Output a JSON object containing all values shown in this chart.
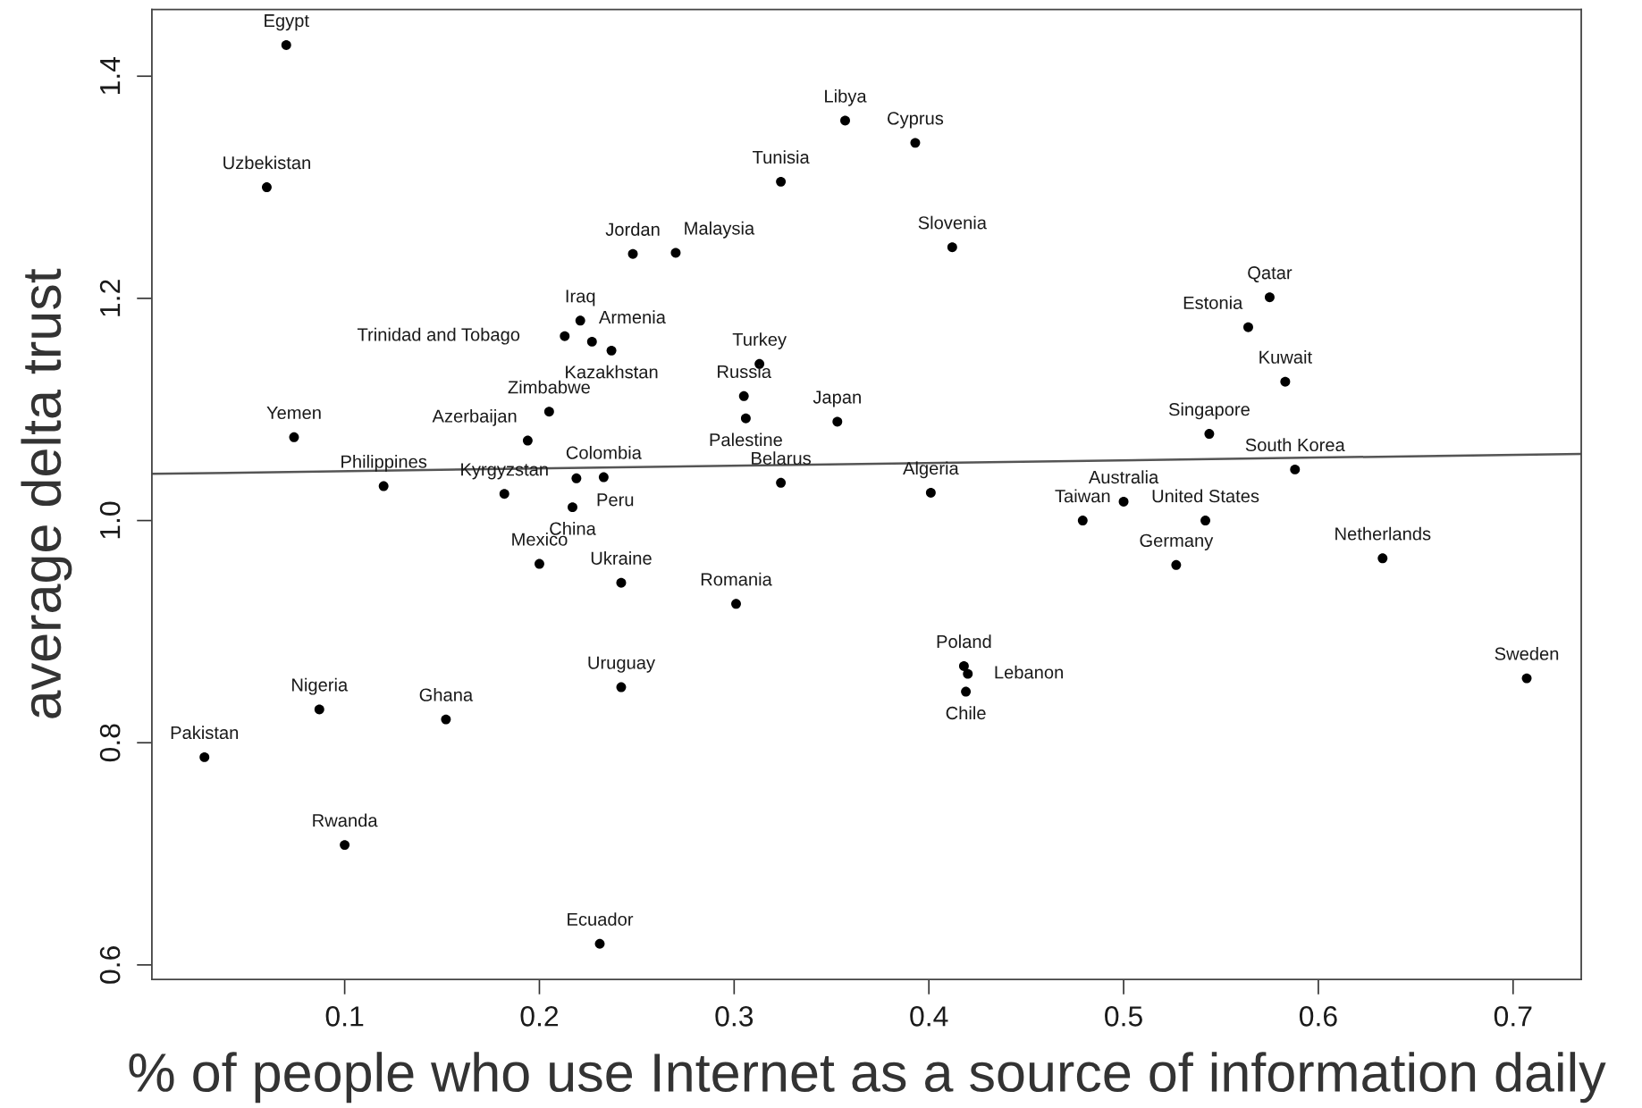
{
  "chart_data": {
    "type": "scatter",
    "xlabel": "% of people who use Internet as a source of information daily",
    "ylabel": "average delta trust",
    "xlim": [
      0.001,
      0.735
    ],
    "ylim": [
      0.587,
      1.46
    ],
    "xticks": [
      0.1,
      0.2,
      0.3,
      0.4,
      0.5,
      0.6,
      0.7
    ],
    "yticks": [
      0.6,
      0.8,
      {
        "value": 1,
        "label": "1.0"
      },
      1.2,
      1.4
    ],
    "series": [
      {
        "marker": "circle",
        "color": "#000000",
        "x": [
          0.07,
          0.06,
          0.357,
          0.393,
          0.324,
          0.248,
          0.27,
          0.412,
          0.575,
          0.221,
          0.564,
          0.213,
          0.227,
          0.237,
          0.313,
          0.583,
          0.305,
          0.205,
          0.306,
          0.353,
          0.544,
          0.074,
          0.194,
          0.588,
          0.233,
          0.219,
          0.324,
          0.12,
          0.401,
          0.182,
          0.5,
          0.217,
          0.479,
          0.542,
          0.633,
          0.2,
          0.527,
          0.242,
          0.301,
          0.418,
          0.42,
          0.707,
          0.242,
          0.419,
          0.087,
          0.152,
          0.028,
          0.1,
          0.231
        ],
        "values": [
          1.428,
          1.3,
          1.36,
          1.34,
          1.305,
          1.24,
          1.241,
          1.246,
          1.201,
          1.18,
          1.174,
          1.166,
          1.161,
          1.153,
          1.141,
          1.125,
          1.112,
          1.098,
          1.092,
          1.089,
          1.078,
          1.075,
          1.072,
          1.046,
          1.039,
          1.038,
          1.034,
          1.031,
          1.025,
          1.024,
          1.017,
          1.012,
          1.0,
          1.0,
          0.966,
          0.961,
          0.96,
          0.944,
          0.925,
          0.869,
          0.862,
          0.858,
          0.85,
          0.846,
          0.83,
          0.821,
          0.787,
          0.708,
          0.619
        ]
      },
      {
        "type": "line",
        "line_style": "solid",
        "color": "#555555",
        "x": [
          0.001,
          0.735
        ],
        "values": [
          1.042,
          1.06
        ]
      }
    ],
    "annotations": [
      {
        "text": "Egypt",
        "x": 0.07,
        "y": 1.428
      },
      {
        "text": "Uzbekistan",
        "x": 0.06,
        "y": 1.3
      },
      {
        "text": "Libya",
        "x": 0.357,
        "y": 1.36
      },
      {
        "text": "Cyprus",
        "x": 0.393,
        "y": 1.34
      },
      {
        "text": "Tunisia",
        "x": 0.324,
        "y": 1.305
      },
      {
        "text": "Jordan",
        "x": 0.248,
        "y": 1.24
      },
      {
        "text": "Malaysia",
        "x": 0.27,
        "y": 1.241
      },
      {
        "text": "Slovenia",
        "x": 0.412,
        "y": 1.246
      },
      {
        "text": "Qatar",
        "x": 0.575,
        "y": 1.201
      },
      {
        "text": "Iraq",
        "x": 0.221,
        "y": 1.18
      },
      {
        "text": "Estonia",
        "x": 0.564,
        "y": 1.174
      },
      {
        "text": "Trinidad and Tobago",
        "x": 0.213,
        "y": 1.166
      },
      {
        "text": "Armenia",
        "x": 0.227,
        "y": 1.161
      },
      {
        "text": "Kazakhstan",
        "x": 0.237,
        "y": 1.153
      },
      {
        "text": "Turkey",
        "x": 0.313,
        "y": 1.141
      },
      {
        "text": "Kuwait",
        "x": 0.583,
        "y": 1.125
      },
      {
        "text": "Russia",
        "x": 0.305,
        "y": 1.112
      },
      {
        "text": "Zimbabwe",
        "x": 0.205,
        "y": 1.098
      },
      {
        "text": "Palestine",
        "x": 0.306,
        "y": 1.092
      },
      {
        "text": "Japan",
        "x": 0.353,
        "y": 1.089
      },
      {
        "text": "Singapore",
        "x": 0.544,
        "y": 1.078
      },
      {
        "text": "Yemen",
        "x": 0.074,
        "y": 1.075
      },
      {
        "text": "Azerbaijan",
        "x": 0.194,
        "y": 1.072
      },
      {
        "text": "South Korea",
        "x": 0.588,
        "y": 1.046
      },
      {
        "text": "Colombia",
        "x": 0.233,
        "y": 1.039
      },
      {
        "text": "Peru",
        "x": 0.219,
        "y": 1.038
      },
      {
        "text": "Belarus",
        "x": 0.324,
        "y": 1.034
      },
      {
        "text": "Philippines",
        "x": 0.12,
        "y": 1.031
      },
      {
        "text": "Algeria",
        "x": 0.401,
        "y": 1.025
      },
      {
        "text": "Kyrgyzstan",
        "x": 0.182,
        "y": 1.024
      },
      {
        "text": "Australia",
        "x": 0.5,
        "y": 1.017
      },
      {
        "text": "China",
        "x": 0.217,
        "y": 1.012
      },
      {
        "text": "Taiwan",
        "x": 0.479,
        "y": 1.0
      },
      {
        "text": "United States",
        "x": 0.542,
        "y": 1.0
      },
      {
        "text": "Netherlands",
        "x": 0.633,
        "y": 0.966
      },
      {
        "text": "Mexico",
        "x": 0.2,
        "y": 0.961
      },
      {
        "text": "Germany",
        "x": 0.527,
        "y": 0.96
      },
      {
        "text": "Ukraine",
        "x": 0.242,
        "y": 0.944
      },
      {
        "text": "Romania",
        "x": 0.301,
        "y": 0.925
      },
      {
        "text": "Poland",
        "x": 0.418,
        "y": 0.869
      },
      {
        "text": "Lebanon",
        "x": 0.42,
        "y": 0.862
      },
      {
        "text": "Sweden",
        "x": 0.707,
        "y": 0.858
      },
      {
        "text": "Uruguay",
        "x": 0.242,
        "y": 0.85
      },
      {
        "text": "Chile",
        "x": 0.419,
        "y": 0.846
      },
      {
        "text": "Nigeria",
        "x": 0.087,
        "y": 0.83
      },
      {
        "text": "Ghana",
        "x": 0.152,
        "y": 0.821
      },
      {
        "text": "Pakistan",
        "x": 0.028,
        "y": 0.787
      },
      {
        "text": "Rwanda",
        "x": 0.1,
        "y": 0.708
      },
      {
        "text": "Ecuador",
        "x": 0.231,
        "y": 0.619
      }
    ]
  }
}
